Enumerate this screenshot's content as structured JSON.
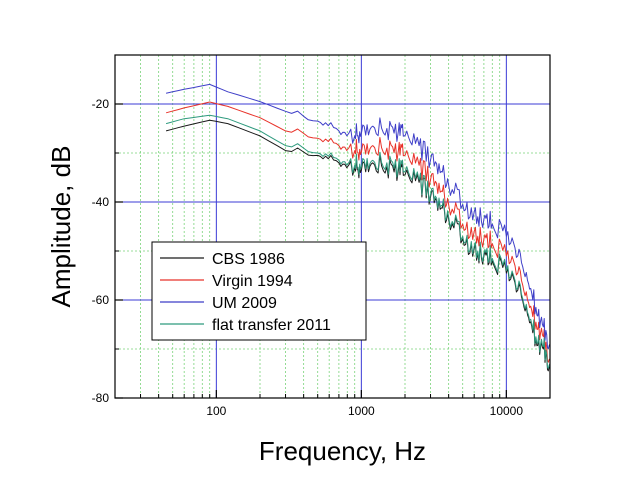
{
  "chart_data": {
    "type": "line",
    "title": "",
    "xlabel": "Frequency, Hz",
    "ylabel": "Amplitude, dB",
    "xscale": "log",
    "xlim": [
      20,
      20000
    ],
    "ylim": [
      -80,
      -10
    ],
    "xticks": [
      100,
      1000,
      10000
    ],
    "xtick_labels": [
      "100",
      "1000",
      "10000"
    ],
    "yticks": [
      -80,
      -60,
      -40,
      -20
    ],
    "ytick_labels": [
      "-80",
      "-60",
      "-40",
      "-20"
    ],
    "grid": "major blue solid, minor green dotted",
    "legend_position": "lower-left",
    "series": [
      {
        "name": "CBS 1986",
        "color": "#1a1a1a",
        "x": [
          45,
          60,
          90,
          120,
          200,
          300,
          400,
          500,
          700,
          900,
          1000,
          1200,
          1500,
          1800,
          2000,
          2500,
          3000,
          3500,
          4000,
          5000,
          6000,
          7000,
          8000,
          10000,
          12000,
          14000,
          16000,
          18000,
          20000
        ],
        "y": [
          -25.5,
          -24.5,
          -23.3,
          -24.0,
          -26.5,
          -29.5,
          -29.8,
          -30.5,
          -32.0,
          -33.0,
          -33.5,
          -32.0,
          -32.8,
          -33.5,
          -34.5,
          -36.0,
          -39.0,
          -41.5,
          -43.5,
          -47.5,
          -49.5,
          -51.0,
          -52.0,
          -54.5,
          -58.0,
          -63.0,
          -68.0,
          -70.0,
          -73.5
        ]
      },
      {
        "name": "Virgin 1994",
        "color": "#e8332a",
        "x": [
          45,
          60,
          90,
          120,
          200,
          300,
          400,
          500,
          700,
          900,
          1000,
          1200,
          1500,
          1800,
          2000,
          2500,
          3000,
          3500,
          4000,
          5000,
          6000,
          7000,
          8000,
          10000,
          12000,
          14000,
          16000,
          18000,
          20000
        ],
        "y": [
          -21.8,
          -20.8,
          -19.6,
          -20.5,
          -22.8,
          -25.5,
          -26.0,
          -27.0,
          -28.5,
          -29.5,
          -29.8,
          -28.5,
          -29.0,
          -29.5,
          -30.5,
          -32.5,
          -35.5,
          -38.0,
          -40.5,
          -44.5,
          -46.0,
          -47.5,
          -48.5,
          -51.0,
          -54.5,
          -60.0,
          -64.5,
          -67.5,
          -72.0
        ]
      },
      {
        "name": "UM 2009",
        "color": "#3f3fc8",
        "x": [
          45,
          60,
          90,
          120,
          200,
          300,
          400,
          500,
          700,
          900,
          1000,
          1200,
          1500,
          1800,
          2000,
          2500,
          3000,
          3500,
          4000,
          5000,
          6000,
          7000,
          8000,
          10000,
          12000,
          14000,
          16000,
          18000,
          20000
        ],
        "y": [
          -17.8,
          -17.0,
          -16.0,
          -17.5,
          -19.5,
          -21.5,
          -22.5,
          -23.5,
          -25.5,
          -26.5,
          -26.0,
          -24.5,
          -25.0,
          -25.5,
          -26.5,
          -28.5,
          -31.5,
          -34.0,
          -36.5,
          -40.5,
          -42.0,
          -43.5,
          -44.5,
          -47.0,
          -51.0,
          -56.0,
          -61.5,
          -65.5,
          -69.0
        ]
      },
      {
        "name": "flat transfer 2011",
        "color": "#2e9a7e",
        "x": [
          45,
          60,
          90,
          120,
          200,
          300,
          400,
          500,
          700,
          900,
          1000,
          1200,
          1500,
          1800,
          2000,
          2500,
          3000,
          3500,
          4000,
          5000,
          6000,
          7000,
          8000,
          10000,
          12000,
          14000,
          16000,
          18000,
          20000
        ],
        "y": [
          -24.0,
          -23.0,
          -22.3,
          -23.0,
          -25.5,
          -28.5,
          -29.0,
          -30.0,
          -31.5,
          -32.5,
          -32.8,
          -31.5,
          -32.0,
          -32.8,
          -33.8,
          -35.5,
          -38.5,
          -41.0,
          -43.0,
          -47.0,
          -49.0,
          -50.5,
          -51.5,
          -54.0,
          -57.5,
          -62.5,
          -67.5,
          -69.5,
          -73.0
        ]
      }
    ]
  }
}
